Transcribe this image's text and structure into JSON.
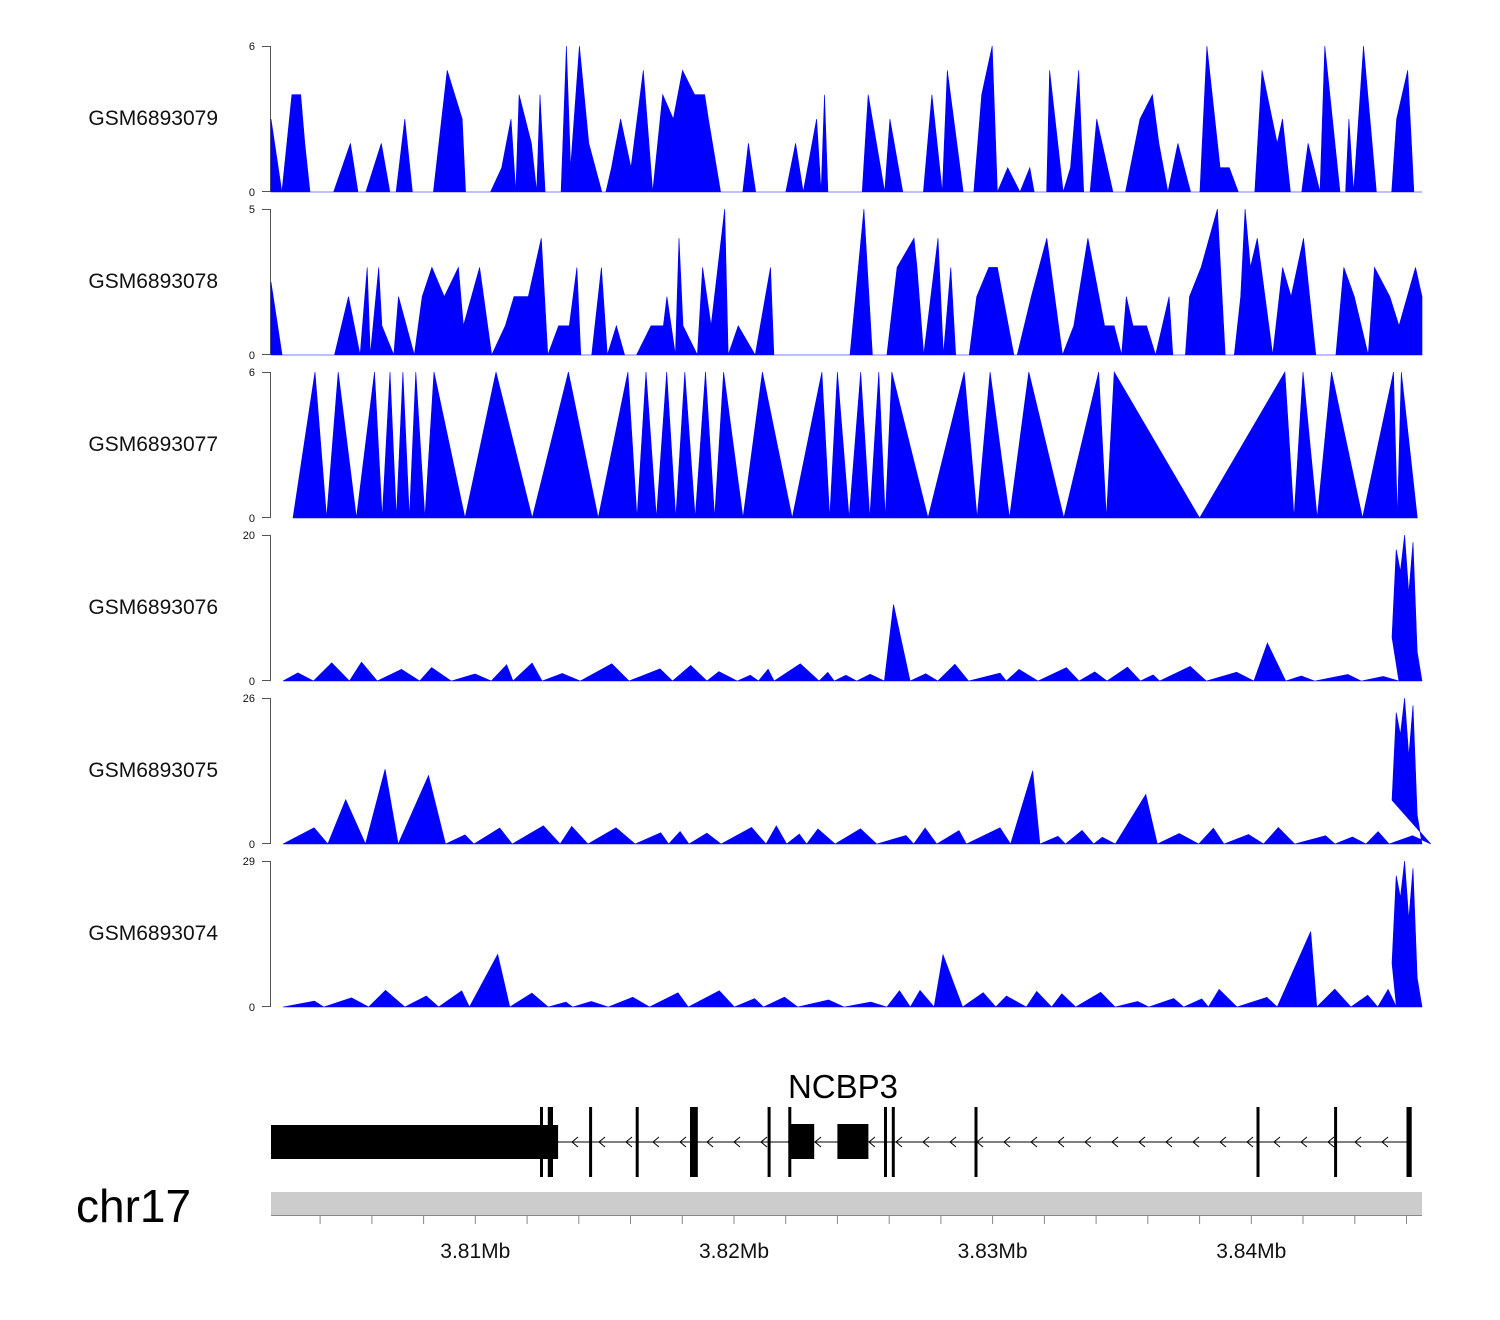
{
  "chart_data": {
    "type": "area",
    "colors": {
      "signal": "#0000ff",
      "gene": "#000000",
      "ideogram": "#cccccc"
    },
    "x_range_mb": [
      3.8021,
      3.8466
    ],
    "tracks": [
      {
        "name": "GSM6893079",
        "ymax": 6,
        "ymin": 0,
        "dense": true,
        "seed": 7
      },
      {
        "name": "GSM6893078",
        "ymax": 5,
        "ymin": 0,
        "dense": true,
        "seed": 13
      },
      {
        "name": "GSM6893077",
        "ymax": 6,
        "ymin": 0,
        "dense": false,
        "seed": 3,
        "peaks_mb": [
          3.8038,
          3.8047,
          3.8061,
          3.8067,
          3.8072,
          3.8077,
          3.8084,
          3.8108,
          3.8136,
          3.8159,
          3.8166,
          3.8174,
          3.8181,
          3.8189,
          3.8196,
          3.8211,
          3.8234,
          3.824,
          3.8249,
          3.8256,
          3.8261,
          3.8289,
          3.8299,
          3.8314,
          3.8341,
          3.8347,
          3.8413,
          3.842,
          3.8431,
          3.8455,
          3.8458
        ]
      },
      {
        "name": "GSM6893076",
        "ymax": 20,
        "ymin": 0,
        "dense": false,
        "seed": 21
      },
      {
        "name": "GSM6893075",
        "ymax": 26,
        "ymin": 0,
        "dense": false,
        "seed": 5
      },
      {
        "name": "GSM6893074",
        "ymax": 29,
        "ymin": 0,
        "dense": false,
        "seed": 11
      }
    ],
    "gene": {
      "name": "NCBP3",
      "strand": "-",
      "start_mb": 3.8021,
      "end_mb": 3.8461,
      "exons_mb": [
        [
          3.8021,
          3.8132
        ],
        [
          3.8125,
          3.8126
        ],
        [
          3.8128,
          3.813
        ],
        [
          3.8144,
          3.8145
        ],
        [
          3.8162,
          3.8163
        ],
        [
          3.8183,
          3.8186
        ],
        [
          3.8213,
          3.8214
        ],
        [
          3.8221,
          3.8222
        ],
        [
          3.8222,
          3.8231
        ],
        [
          3.824,
          3.8252
        ],
        [
          3.8258,
          3.8259
        ],
        [
          3.8261,
          3.8262
        ],
        [
          3.8293,
          3.8294
        ],
        [
          3.8402,
          3.8403
        ],
        [
          3.8432,
          3.8433
        ],
        [
          3.846,
          3.8462
        ]
      ]
    },
    "chromosome": "chr17",
    "x_ticks": [
      {
        "value_mb": 3.81,
        "label": "3.81Mb"
      },
      {
        "value_mb": 3.82,
        "label": "3.82Mb"
      },
      {
        "value_mb": 3.83,
        "label": "3.83Mb"
      },
      {
        "value_mb": 3.84,
        "label": "3.84Mb"
      }
    ],
    "minor_tick_step_mb": 0.002
  }
}
